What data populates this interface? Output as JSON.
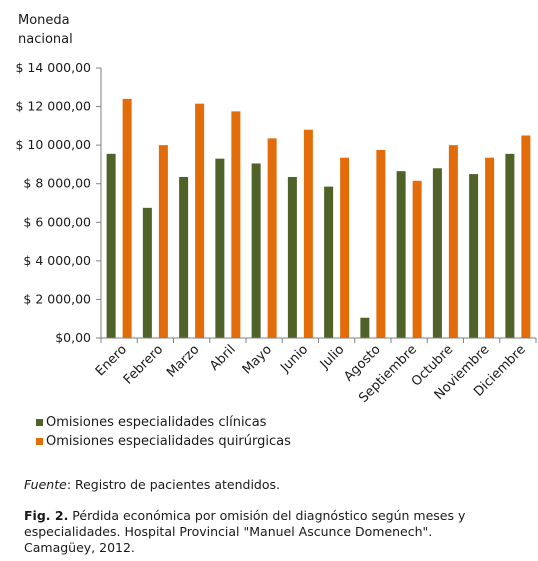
{
  "chart_data": {
    "type": "bar",
    "ylabel": "Moneda nacional",
    "categories": [
      "Enero",
      "Febrero",
      "Marzo",
      "Abril",
      "Mayo",
      "Junio",
      "Julio",
      "Agosto",
      "Septiembre",
      "Octubre",
      "Noviembre",
      "Diciembre"
    ],
    "series": [
      {
        "name": "Omisiones especialidades clínicas",
        "color": "#4f6228",
        "values": [
          9550,
          6750,
          8350,
          9300,
          9050,
          8350,
          7850,
          1050,
          8650,
          8800,
          8500,
          9550
        ]
      },
      {
        "name": "Omisiones especialidades quirúrgicas",
        "color": "#e36c0a",
        "values": [
          12400,
          10000,
          12150,
          11750,
          10350,
          10800,
          9350,
          9750,
          8150,
          10000,
          9350,
          10500
        ]
      }
    ],
    "ylim": [
      0,
      14000
    ],
    "yticks": [
      0,
      2000,
      4000,
      6000,
      8000,
      10000,
      12000,
      14000
    ],
    "yticklabels": [
      "$0,00",
      "$ 2 000,00",
      "$ 4 000,00",
      "$ 6 000,00",
      "$ 8 000,00",
      "$ 10 000,00",
      "$ 12 000,00",
      "$ 14 000,00"
    ],
    "ylabel_lines": [
      "Moneda",
      "nacional"
    ],
    "grid": false,
    "legend_position": "bottom-left"
  },
  "source": {
    "label": "Fuente",
    "text": ": Registro de pacientes atendidos."
  },
  "caption": {
    "label": "Fig. 2.",
    "text": " Pérdida económica por omisión del diagnóstico  según meses y especialidades. Hospital Provincial \"Manuel Ascunce Domenech\". Camagüey, 2012."
  }
}
